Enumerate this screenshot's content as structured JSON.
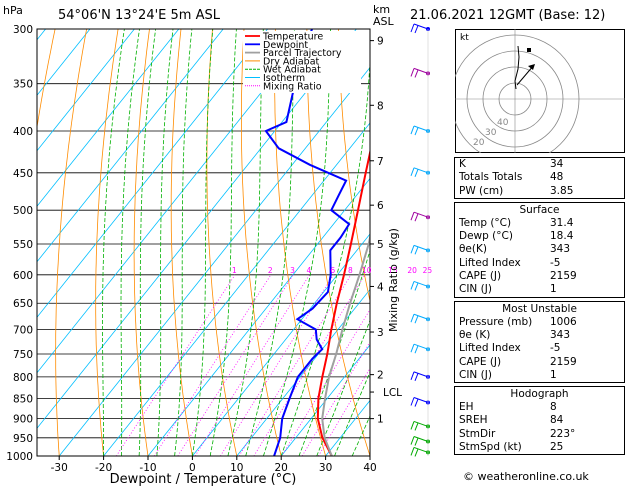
{
  "header": {
    "location": "54°06'N  13°24'E  5m  ASL",
    "datetime": "21.06.2021  12GMT  (Base: 12)"
  },
  "chart_data": {
    "type": "skewt",
    "pressure_unit_label": "hPa",
    "height_unit_label": "km",
    "height_unit_label2": "ASL",
    "xlabel": "Dewpoint / Temperature (°C)",
    "mixing_ratio_axis_label": "Mixing Ratio (g/kg)",
    "pressure_ticks": [
      300,
      350,
      400,
      450,
      500,
      550,
      600,
      650,
      700,
      750,
      800,
      850,
      900,
      950,
      1000
    ],
    "temperature_ticks": [
      -30,
      -20,
      -10,
      0,
      10,
      20,
      30,
      40
    ],
    "height_km_ticks": [
      {
        "label": "9",
        "p": 310
      },
      {
        "label": "8",
        "p": 372
      },
      {
        "label": "7",
        "p": 435
      },
      {
        "label": "6",
        "p": 493
      },
      {
        "label": "5",
        "p": 550
      },
      {
        "label": "4",
        "p": 620
      },
      {
        "label": "3",
        "p": 705
      },
      {
        "label": "2",
        "p": 795
      },
      {
        "label": "LCL",
        "p": 835
      },
      {
        "label": "1",
        "p": 900
      }
    ],
    "mixing_ratio_labels": [
      "1",
      "2",
      "3",
      "4",
      "6",
      "8",
      "10",
      "15",
      "20",
      "25"
    ],
    "legend": [
      {
        "name": "Temperature",
        "color": "#ff0000"
      },
      {
        "name": "Dewpoint",
        "color": "#0000ff"
      },
      {
        "name": "Parcel Trajectory",
        "color": "#a0a0a0"
      },
      {
        "name": "Dry Adiabat",
        "color": "#ff8c00"
      },
      {
        "name": "Wet Adiabat",
        "color": "#00b000"
      },
      {
        "name": "Isotherm",
        "color": "#00bfff"
      },
      {
        "name": "Mixing Ratio",
        "color": "#ff00ff"
      }
    ],
    "series": [
      {
        "name": "Temperature",
        "points": [
          [
            1000,
            31.4
          ],
          [
            950,
            26
          ],
          [
            900,
            21.5
          ],
          [
            850,
            18
          ],
          [
            800,
            15
          ],
          [
            750,
            12
          ],
          [
            700,
            8.5
          ],
          [
            650,
            5
          ],
          [
            600,
            1.5
          ],
          [
            550,
            -2.5
          ],
          [
            500,
            -7
          ],
          [
            450,
            -12
          ],
          [
            400,
            -17.5
          ],
          [
            350,
            -24.5
          ],
          [
            300,
            -32
          ]
        ]
      },
      {
        "name": "Dewpoint",
        "points": [
          [
            1000,
            18.4
          ],
          [
            950,
            16.5
          ],
          [
            900,
            13.5
          ],
          [
            850,
            11.5
          ],
          [
            800,
            9.5
          ],
          [
            760,
            9.5
          ],
          [
            740,
            10
          ],
          [
            720,
            7
          ],
          [
            700,
            5
          ],
          [
            680,
            -1
          ],
          [
            660,
            0.5
          ],
          [
            630,
            1
          ],
          [
            600,
            -1.5
          ],
          [
            560,
            -6
          ],
          [
            540,
            -6
          ],
          [
            520,
            -6.5
          ],
          [
            500,
            -13
          ],
          [
            480,
            -14
          ],
          [
            460,
            -15
          ],
          [
            440,
            -26
          ],
          [
            420,
            -36
          ],
          [
            400,
            -42
          ],
          [
            390,
            -39
          ],
          [
            350,
            -44
          ],
          [
            300,
            -50
          ]
        ]
      },
      {
        "name": "Parcel Trajectory",
        "points": [
          [
            1000,
            31.4
          ],
          [
            950,
            26.5
          ],
          [
            900,
            22.5
          ],
          [
            850,
            19.5
          ],
          [
            800,
            16.5
          ],
          [
            750,
            14
          ],
          [
            700,
            11
          ],
          [
            650,
            8
          ],
          [
            600,
            5
          ],
          [
            550,
            1.5
          ],
          [
            500,
            -3
          ],
          [
            450,
            -8
          ],
          [
            400,
            -13.5
          ],
          [
            350,
            -20
          ],
          [
            300,
            -28
          ]
        ]
      }
    ],
    "wind_barbs": [
      {
        "p": 300,
        "color": "#0000ff"
      },
      {
        "p": 340,
        "color": "#a000a0"
      },
      {
        "p": 400,
        "color": "#00aaff"
      },
      {
        "p": 450,
        "color": "#00aaff"
      },
      {
        "p": 510,
        "color": "#a000a0"
      },
      {
        "p": 560,
        "color": "#00aaff"
      },
      {
        "p": 620,
        "color": "#00aaff"
      },
      {
        "p": 680,
        "color": "#00aaff"
      },
      {
        "p": 740,
        "color": "#00aaff"
      },
      {
        "p": 800,
        "color": "#0000ff"
      },
      {
        "p": 860,
        "color": "#0000ff"
      },
      {
        "p": 920,
        "color": "#00aa00"
      },
      {
        "p": 960,
        "color": "#00aa00"
      },
      {
        "p": 990,
        "color": "#00aa00"
      }
    ]
  },
  "hodograph": {
    "unit_label": "kt",
    "ring_labels": [
      "40",
      "30",
      "20"
    ]
  },
  "indices": {
    "general": [
      {
        "label": "K",
        "value": "34"
      },
      {
        "label": "Totals Totals",
        "value": "48"
      },
      {
        "label": "PW (cm)",
        "value": "3.85"
      }
    ],
    "surface_title": "Surface",
    "surface": [
      {
        "label": "Temp (°C)",
        "value": "31.4"
      },
      {
        "label": "Dewp (°C)",
        "value": "18.4"
      },
      {
        "label": "θe(K)",
        "value": "343"
      },
      {
        "label": "Lifted Index",
        "value": "-5"
      },
      {
        "label": "CAPE (J)",
        "value": "2159"
      },
      {
        "label": "CIN (J)",
        "value": "1"
      }
    ],
    "unstable_title": "Most Unstable",
    "unstable": [
      {
        "label": "Pressure (mb)",
        "value": "1006"
      },
      {
        "label": "θe (K)",
        "value": "343"
      },
      {
        "label": "Lifted Index",
        "value": "-5"
      },
      {
        "label": "CAPE (J)",
        "value": "2159"
      },
      {
        "label": "CIN (J)",
        "value": "1"
      }
    ],
    "hodograph_title": "Hodograph",
    "hodo": [
      {
        "label": "EH",
        "value": "8"
      },
      {
        "label": "SREH",
        "value": "84"
      },
      {
        "label": "StmDir",
        "value": "223°"
      },
      {
        "label": "StmSpd (kt)",
        "value": "25"
      }
    ]
  },
  "copyright": "© weatheronline.co.uk"
}
